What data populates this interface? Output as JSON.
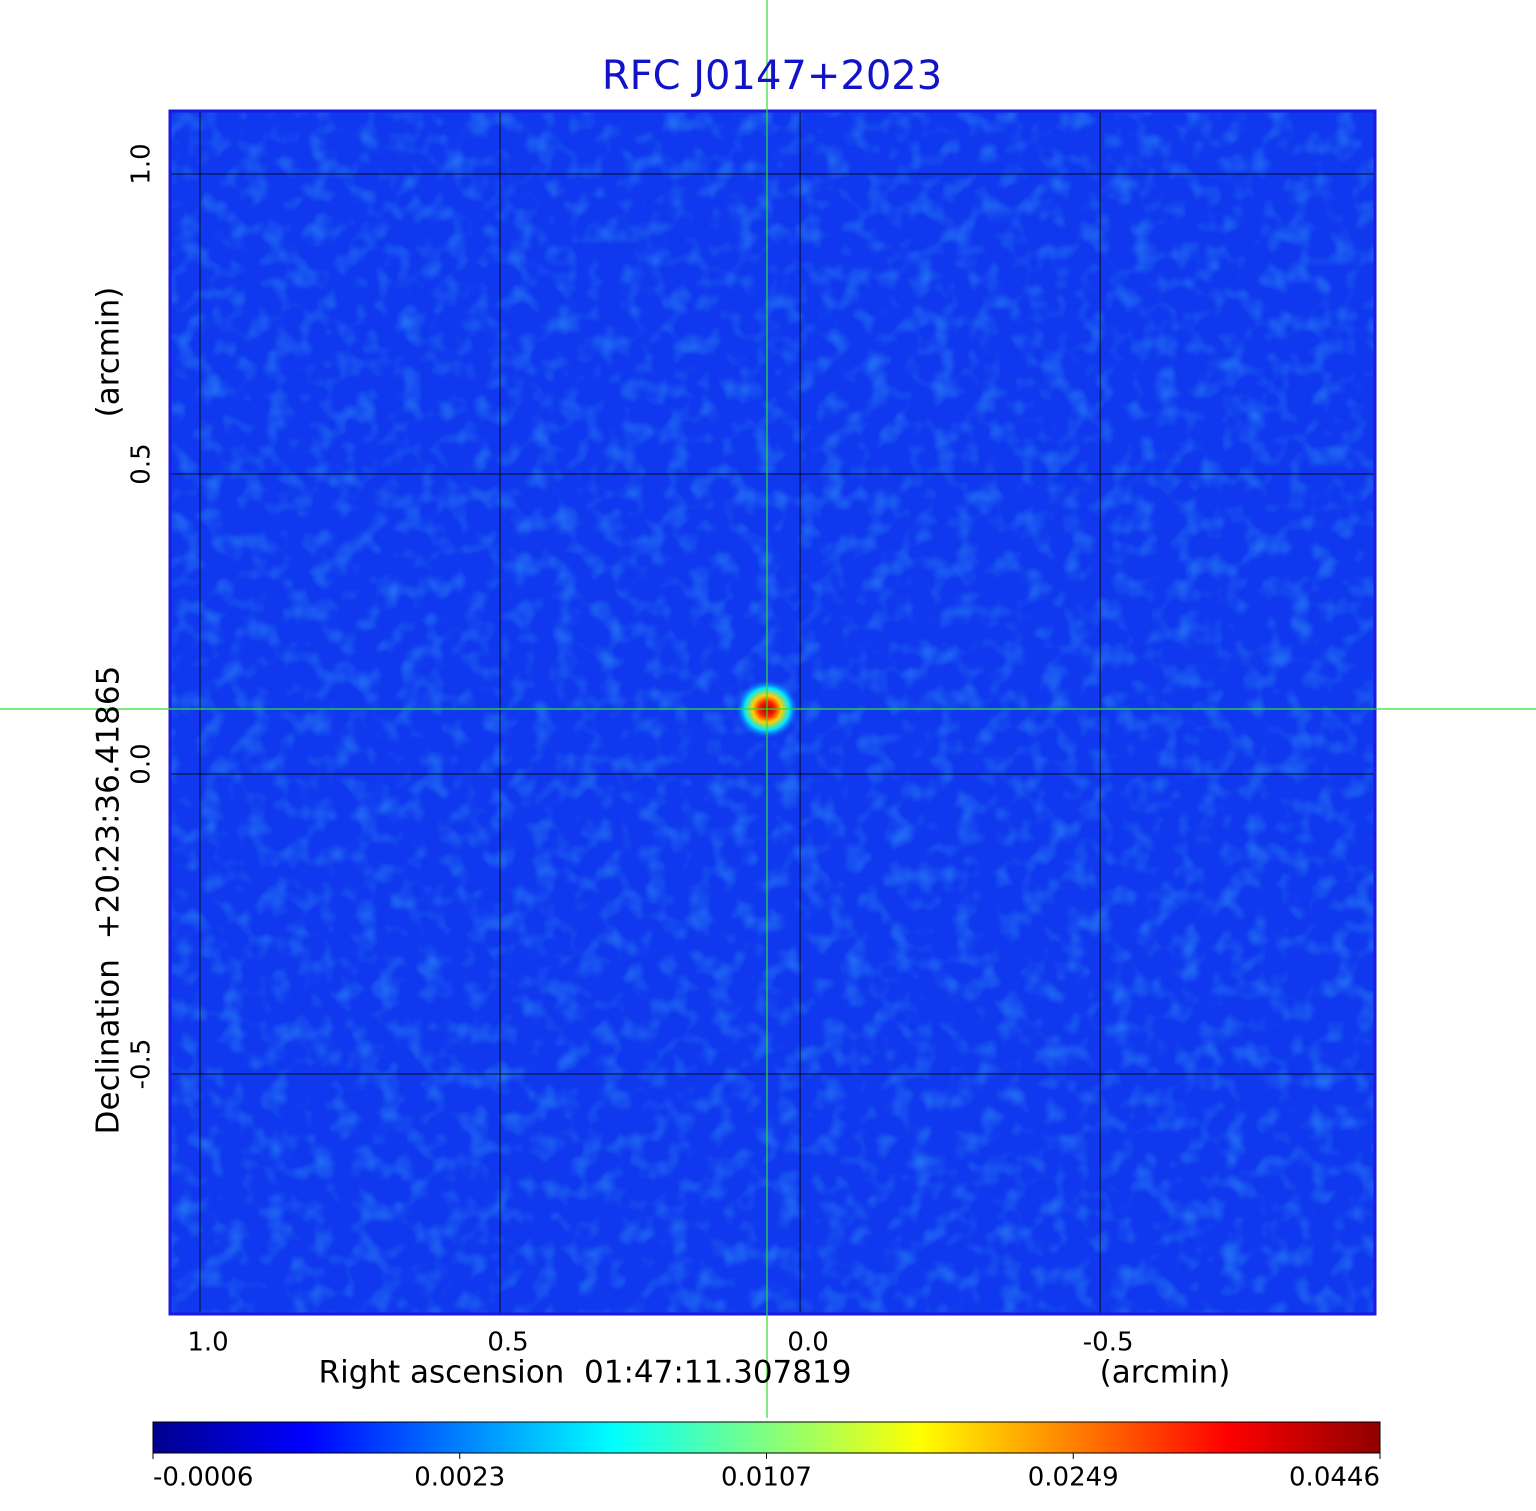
{
  "chart_data": {
    "type": "image",
    "title": "RFC J0147+2023",
    "x_label": "Right ascension  01:47:11.307819",
    "x_unit": "(arcmin)",
    "y_label": "Declination  +20:23:36.41865",
    "y_unit": "(arcmin)",
    "xlim": [
      1.05,
      -0.958
    ],
    "ylim": [
      -0.9,
      1.105
    ],
    "xticks": [
      {
        "value": 1,
        "label": "1.0"
      },
      0.5,
      {
        "value": 0,
        "label": "0.0"
      },
      -0.5
    ],
    "yticks": [
      -0.5,
      {
        "value": 0,
        "label": "0.0"
      },
      0.5,
      {
        "value": 1,
        "label": "1.0"
      }
    ],
    "grid": true,
    "colorbar": {
      "ticks": [
        -0.0006,
        0.0023,
        0.0107,
        0.0249,
        0.0446
      ],
      "colormap": [
        "#00008f",
        "#0000ff",
        "#0080ff",
        "#00ffff",
        "#80ff80",
        "#ffff00",
        "#ff8000",
        "#ff0000",
        "#8f0000"
      ]
    }
  }
}
